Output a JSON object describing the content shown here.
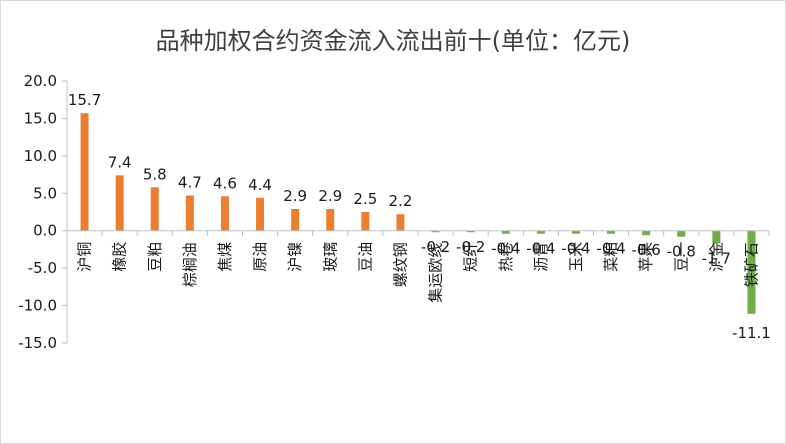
{
  "chart_data": {
    "type": "bar",
    "title": "品种加权合约资金流入流出前十(单位：亿元)",
    "xlabel": "",
    "ylabel": "",
    "ylim": [
      -15,
      20
    ],
    "yticks": [
      "20.0",
      "15.0",
      "10.0",
      "5.0",
      "0.0",
      "-5.0",
      "-10.0",
      "-15.0"
    ],
    "grid": false,
    "legend": "none",
    "categories": [
      "沪铜",
      "橡胶",
      "豆粕",
      "棕榈油",
      "焦煤",
      "原油",
      "沪镍",
      "玻璃",
      "豆油",
      "螺纹钢",
      "集运欧线",
      "短纤",
      "热卷",
      "沥青",
      "玉米",
      "菜粕",
      "苹果",
      "豆一",
      "沪金",
      "铁矿石"
    ],
    "values": [
      15.7,
      7.4,
      5.8,
      4.7,
      4.6,
      4.4,
      2.9,
      2.9,
      2.5,
      2.2,
      -0.2,
      -0.2,
      -0.4,
      -0.4,
      -0.4,
      -0.4,
      -0.6,
      -0.8,
      -1.7,
      -11.1
    ],
    "data_labels": [
      "15.7",
      "7.4",
      "5.8",
      "4.7",
      "4.6",
      "4.4",
      "2.9",
      "2.9",
      "2.5",
      "2.2",
      "-0.2",
      "-0.2",
      "-0.4",
      "-0.4",
      "-0.4",
      "-0.4",
      "-0.6",
      "-0.8",
      "-1.7",
      "-11.1"
    ],
    "colors": {
      "positive": "#ED7D31",
      "negative": "#70AD47",
      "axis": "#BFBFBF",
      "text": "#404040"
    }
  }
}
